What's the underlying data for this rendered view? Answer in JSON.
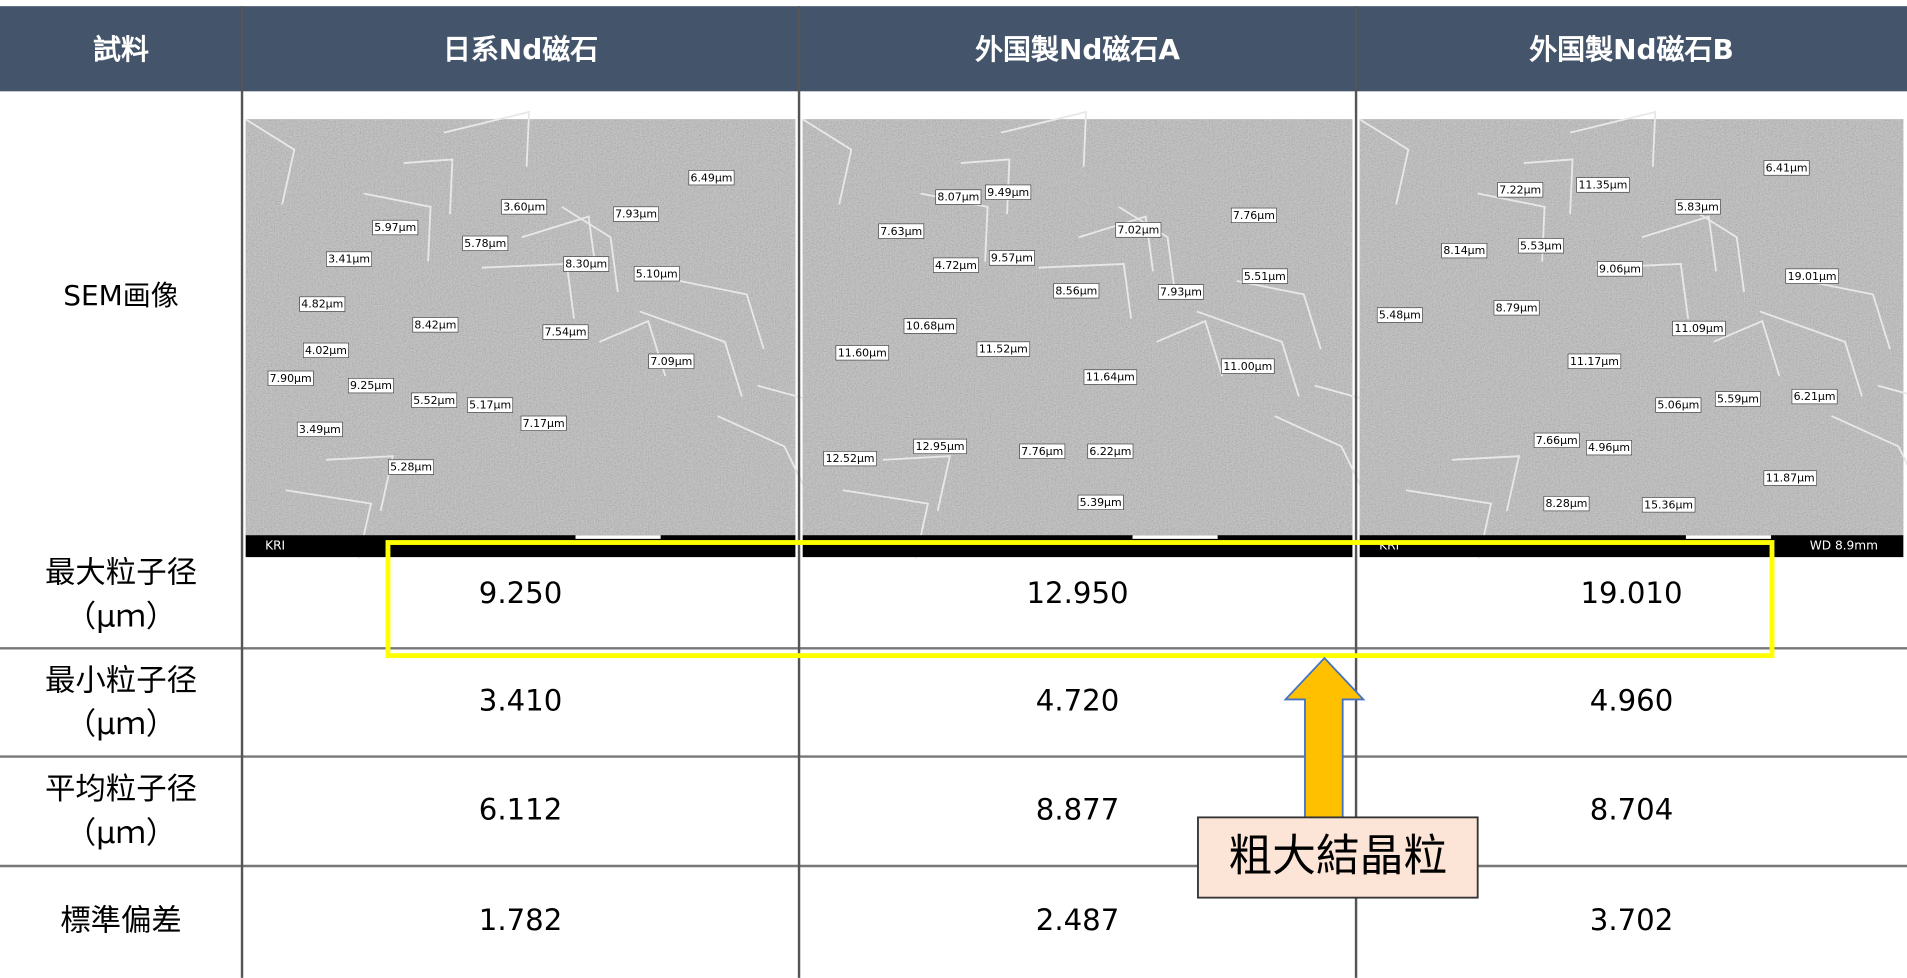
{
  "table": {
    "header": [
      "試料",
      "日系Nd磁石",
      "外国製Nd磁石A",
      "外国製Nd磁石B"
    ],
    "sem_row_label": "SEM画像",
    "rows": [
      {
        "label": [
          "最大粒子径",
          "（μｍ）"
        ],
        "cells": [
          "9.250",
          "12.950",
          "19.010"
        ]
      },
      {
        "label": [
          "最小粒子径",
          "（μｍ）"
        ],
        "cells": [
          "3.410",
          "4.720",
          "4.960"
        ]
      },
      {
        "label": [
          "平均粒子径",
          "（μｍ）"
        ],
        "cells": [
          "6.112",
          "8.877",
          "8.704"
        ]
      },
      {
        "label": [
          "標準偏差"
        ],
        "cells": [
          "1.782",
          "2.487",
          "3.702"
        ]
      }
    ]
  },
  "sem_images": [
    {
      "labels": [
        "6.49μm",
        "3.60μm",
        "7.93μm",
        "5.97μm",
        "5.78μm",
        "8.30μm",
        "3.41μm",
        "5.10μm",
        "4.82μm",
        "8.42μm",
        "7.54μm",
        "4.02μm",
        "7.09μm",
        "7.90μm",
        "9.25μm",
        "5.52μm",
        "5.17μm",
        "7.17μm",
        "3.49μm",
        "5.28μm"
      ],
      "bar": [
        "KRI"
      ]
    },
    {
      "labels": [
        "9.49μm",
        "8.07μm",
        "7.76μm",
        "7.63μm",
        "7.02μm",
        "4.72μm",
        "9.57μm",
        "5.51μm",
        "8.56μm",
        "7.93μm",
        "10.68μm",
        "11.60μm",
        "11.52μm",
        "11.00μm",
        "11.64μm",
        "12.95μm",
        "7.76μm",
        "6.22μm",
        "12.52μm",
        "5.39μm"
      ],
      "bar": []
    },
    {
      "labels": [
        "11.35μm",
        "6.41μm",
        "7.22μm",
        "5.83μm",
        "8.14μm",
        "5.53μm",
        "9.06μm",
        "19.01μm",
        "8.79μm",
        "5.48μm",
        "11.09μm",
        "11.17μm",
        "5.06μm",
        "5.59μm",
        "6.21μm",
        "7.66μm",
        "4.96μm",
        "11.87μm",
        "8.28μm",
        "15.36μm"
      ],
      "bar": [
        "KRI",
        "WD 8.9mm"
      ]
    }
  ],
  "callout": "粗大結晶粒"
}
